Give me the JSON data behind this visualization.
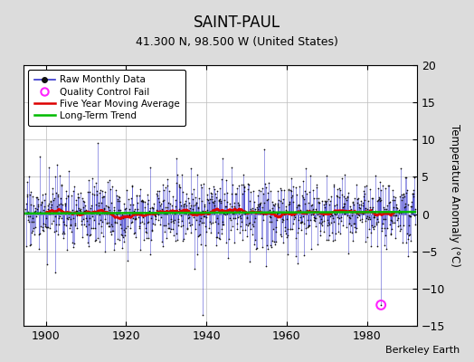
{
  "title": "SAINT-PAUL",
  "subtitle": "41.300 N, 98.500 W (United States)",
  "ylabel": "Temperature Anomaly (°C)",
  "credit": "Berkeley Earth",
  "year_start": 1895,
  "year_end": 1992,
  "ylim": [
    -15,
    20
  ],
  "yticks": [
    -15,
    -10,
    -5,
    0,
    5,
    10,
    15,
    20
  ],
  "xticks": [
    1900,
    1920,
    1940,
    1960,
    1980
  ],
  "background_color": "#dcdcdc",
  "plot_bg_color": "#ffffff",
  "raw_line_color": "#3333cc",
  "raw_dot_color": "#111111",
  "moving_avg_color": "#dd0000",
  "trend_color": "#00bb00",
  "qc_fail_color": "#ff22ff",
  "qc_fail_year": 1983.5,
  "qc_fail_value": -12.2,
  "seed": 17,
  "n_months": 1140
}
